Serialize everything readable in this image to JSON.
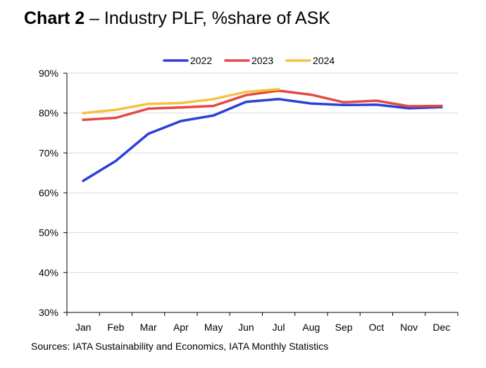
{
  "title": {
    "bold": "Chart 2",
    "rest": " – Industry PLF, %share of ASK"
  },
  "source": "Sources: IATA Sustainability and Economics, IATA Monthly Statistics",
  "chart_data": {
    "type": "line",
    "title": "Industry PLF, %share of ASK",
    "categories": [
      "Jan",
      "Feb",
      "Mar",
      "Apr",
      "May",
      "Jun",
      "Jul",
      "Aug",
      "Sep",
      "Oct",
      "Nov",
      "Dec"
    ],
    "ylim": [
      30,
      90
    ],
    "yticks": [
      30,
      40,
      50,
      60,
      70,
      80,
      90
    ],
    "ytick_labels": [
      "30%",
      "40%",
      "50%",
      "60%",
      "70%",
      "80%",
      "90%"
    ],
    "grid": "horizontal",
    "legend_position": "top",
    "series": [
      {
        "name": "2022",
        "color": "#2b3fd9",
        "values": [
          63.0,
          68.0,
          74.8,
          78.0,
          79.4,
          82.8,
          83.5,
          82.4,
          82.0,
          82.1,
          81.2,
          81.5
        ]
      },
      {
        "name": "2023",
        "color": "#e24a43",
        "values": [
          78.3,
          78.8,
          81.1,
          81.4,
          81.8,
          84.5,
          85.6,
          84.6,
          82.7,
          83.1,
          81.7,
          81.8
        ]
      },
      {
        "name": "2024",
        "color": "#f5c242",
        "values": [
          80.0,
          80.8,
          82.3,
          82.5,
          83.5,
          85.3,
          86.0,
          null,
          null,
          null,
          null,
          null
        ]
      }
    ]
  }
}
